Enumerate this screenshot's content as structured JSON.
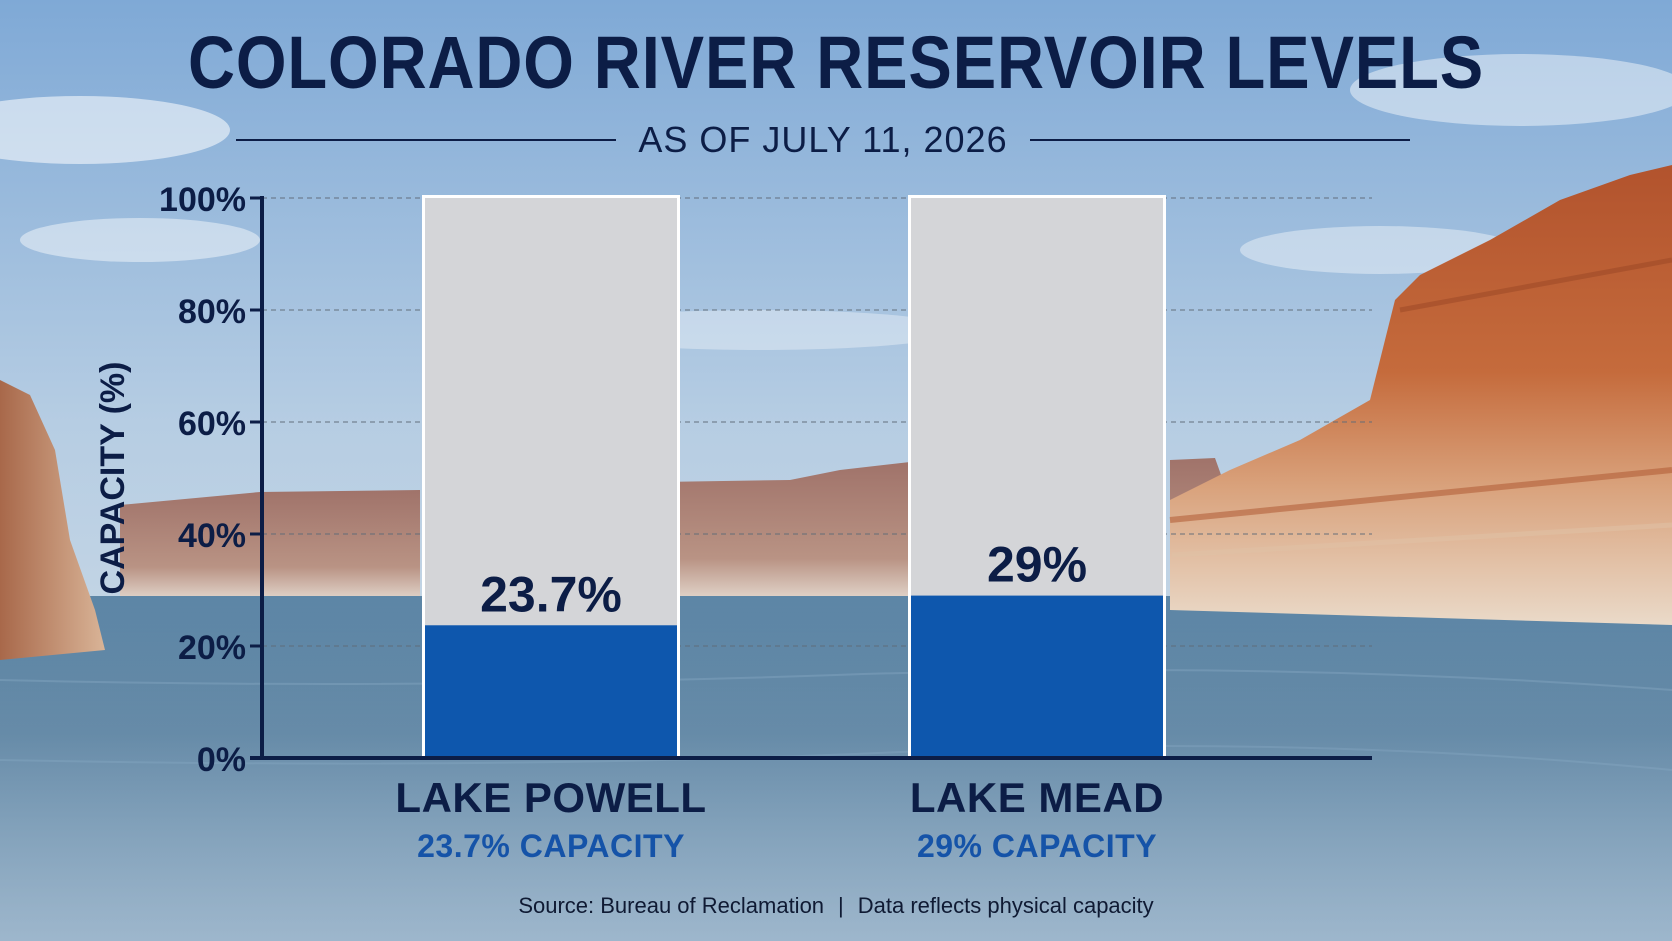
{
  "title": "COLORADO RIVER RESERVOIR LEVELS",
  "subtitle": "AS OF JULY 11, 2026",
  "footer": {
    "source": "Source: Bureau of Reclamation",
    "separator": "|",
    "note": "Data reflects physical capacity"
  },
  "colors": {
    "title": "#0c1d46",
    "fill": "#0e57ad",
    "empty": "#d4d5d8",
    "secondary_label": "#1553a8"
  },
  "chart_data": {
    "type": "bar",
    "categories": [
      "LAKE POWELL",
      "LAKE MEAD"
    ],
    "values": [
      23.7,
      29
    ],
    "value_labels": [
      "23.7%",
      "29%"
    ],
    "capacity_labels": [
      "23.7% CAPACITY",
      "29% CAPACITY"
    ],
    "ylabel": "CAPACITY (%)",
    "ylim": [
      0,
      100
    ],
    "yticks": [
      0,
      20,
      40,
      60,
      80,
      100
    ],
    "ytick_labels": [
      "0%",
      "20%",
      "40%",
      "60%",
      "80%",
      "100%"
    ],
    "grid": true,
    "legend": "none"
  }
}
